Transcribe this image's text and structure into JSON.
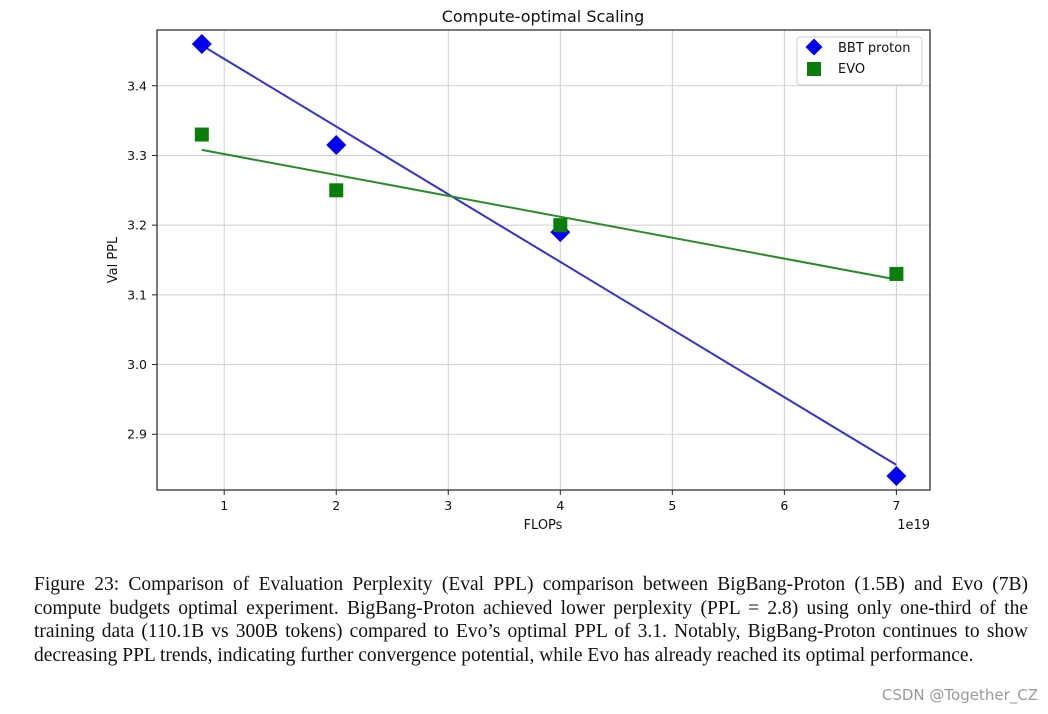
{
  "chart_data": {
    "type": "scatter",
    "title": "Compute-optimal Scaling",
    "xlabel": "FLOPs",
    "ylabel": "Val PPL",
    "x_offset_label": "1e19",
    "xlim": [
      0.4,
      7.3
    ],
    "ylim": [
      2.82,
      3.48
    ],
    "xticks": [
      1,
      2,
      3,
      4,
      5,
      6,
      7
    ],
    "yticks": [
      2.9,
      3.0,
      3.1,
      3.2,
      3.3,
      3.4
    ],
    "grid": true,
    "legend": "top-right",
    "series": [
      {
        "name": "BBT proton",
        "marker": "diamond",
        "color": "#0000ee",
        "points": [
          [
            0.8,
            3.46
          ],
          [
            2,
            3.315
          ],
          [
            4,
            3.19
          ],
          [
            7,
            2.84
          ]
        ],
        "fit": {
          "x": [
            0.8,
            7
          ],
          "y": [
            3.458,
            2.856
          ],
          "color": "#3333cc"
        }
      },
      {
        "name": "EVO",
        "marker": "square",
        "color": "#0a7d0a",
        "points": [
          [
            0.8,
            3.33
          ],
          [
            2,
            3.25
          ],
          [
            4,
            3.2
          ],
          [
            7,
            3.13
          ]
        ],
        "fit": {
          "x": [
            0.8,
            7
          ],
          "y": [
            3.308,
            3.122
          ],
          "color": "#2a8a2a"
        }
      }
    ]
  },
  "caption": {
    "lines": [
      "Figure 23: Comparison of Evaluation Perplexity (Eval PPL) comparison between BigBang-Proton (1.5B) and",
      "Evo (7B) compute budgets optimal experiment. BigBang-Proton achieved lower perplexity (PPL = 2.8) using",
      "only one-third of the training data (110.1B vs 300B tokens) compared to Evo’s optimal PPL of 3.1. Notably,",
      "BigBang-Proton continues to show decreasing PPL trends, indicating further convergence potential, while Evo",
      "has already reached its optimal performance."
    ]
  },
  "watermark": "CSDN @Together_CZ"
}
